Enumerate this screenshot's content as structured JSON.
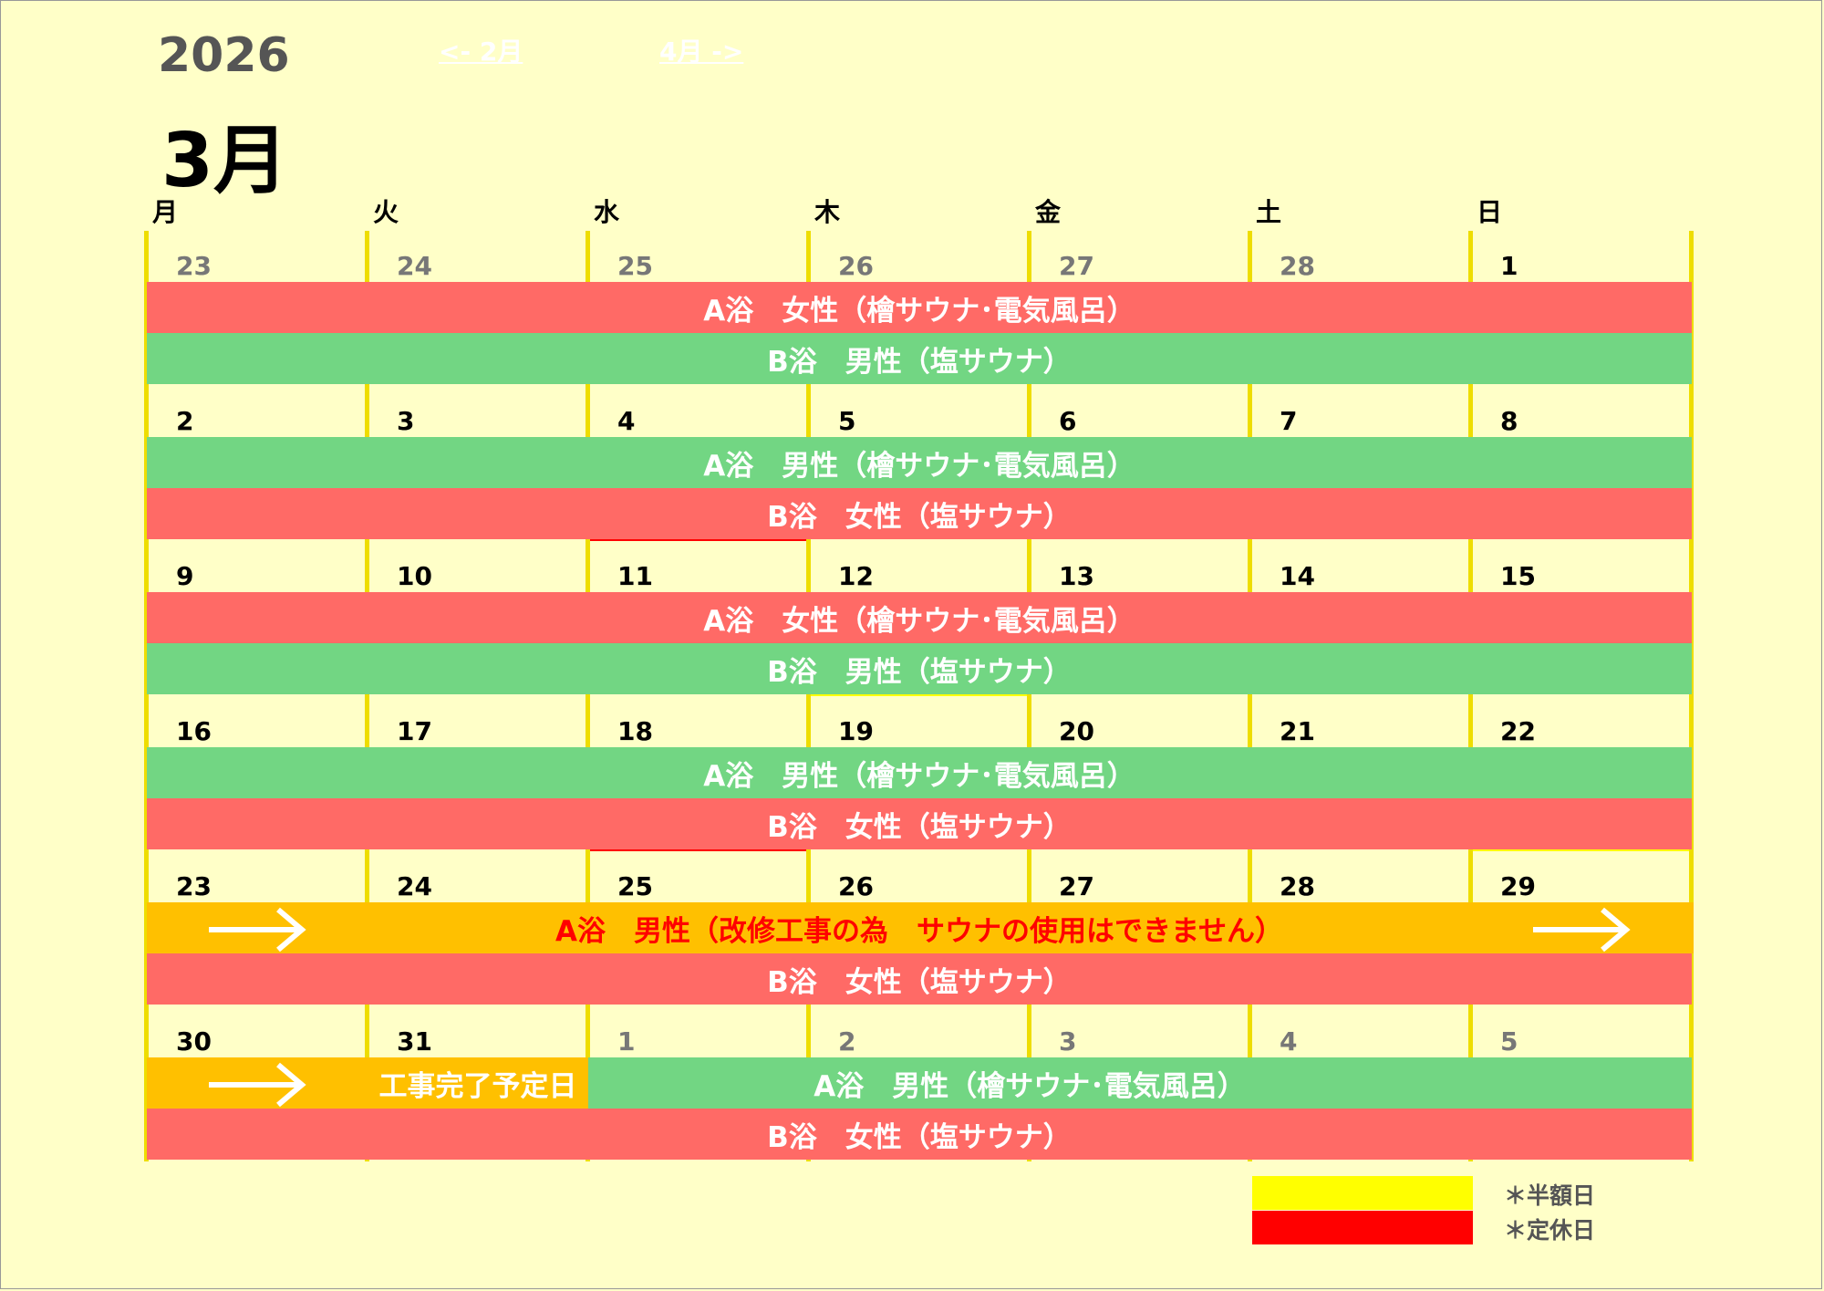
{
  "header": {
    "year": "2026",
    "month": "3月",
    "prev_link": "<- 2月",
    "next_link": "4月 ->"
  },
  "weekdays": [
    "月",
    "火",
    "水",
    "木",
    "金",
    "土",
    "日"
  ],
  "weeks": [
    {
      "dates": [
        "23",
        "24",
        "25",
        "26",
        "27",
        "28",
        "1"
      ],
      "other_month": [
        true,
        true,
        true,
        true,
        true,
        true,
        false
      ],
      "bath_a": "A浴　女性（檜サウナ･電気風呂）",
      "bath_b": "B浴　男性（塩サウナ）"
    },
    {
      "dates": [
        "2",
        "3",
        "4",
        "5",
        "6",
        "7",
        "8"
      ],
      "bath_a": "A浴　男性（檜サウナ･電気風呂）",
      "bath_b": "B浴　女性（塩サウナ）"
    },
    {
      "dates": [
        "9",
        "10",
        "11",
        "12",
        "13",
        "14",
        "15"
      ],
      "bath_a": "A浴　女性（檜サウナ･電気風呂）",
      "bath_b": "B浴　男性（塩サウナ）"
    },
    {
      "dates": [
        "16",
        "17",
        "18",
        "19",
        "20",
        "21",
        "22"
      ],
      "bath_a": "A浴　男性（檜サウナ･電気風呂）",
      "bath_b": "B浴　女性（塩サウナ）"
    },
    {
      "dates": [
        "23",
        "24",
        "25",
        "26",
        "27",
        "28",
        "29"
      ],
      "bath_a": "A浴　男性（改修工事の為　サウナの使用はできません）",
      "bath_b": "B浴　女性（塩サウナ）"
    },
    {
      "dates": [
        "30",
        "31",
        "1",
        "2",
        "3",
        "4",
        "5"
      ],
      "other_month": [
        false,
        false,
        true,
        true,
        true,
        true,
        true
      ],
      "construction_end": "工事完了予定日",
      "bath_a": "A浴　男性（檜サウナ･電気風呂）",
      "bath_b": "B浴　女性（塩サウナ）"
    }
  ],
  "legend": {
    "half_price": "＊半額日",
    "closed": "＊定休日"
  },
  "colors": {
    "half_price": "#FFFF00",
    "closed": "#FF0000",
    "women": "#FF6A66",
    "men": "#72D683",
    "construction": "#FFC000",
    "construction_text": "#FF0000",
    "background": "#FFFFC8"
  },
  "special_days": {
    "closed": [
      "3/11",
      "3/25"
    ],
    "half_price": [
      "3/19",
      "3/29"
    ]
  }
}
